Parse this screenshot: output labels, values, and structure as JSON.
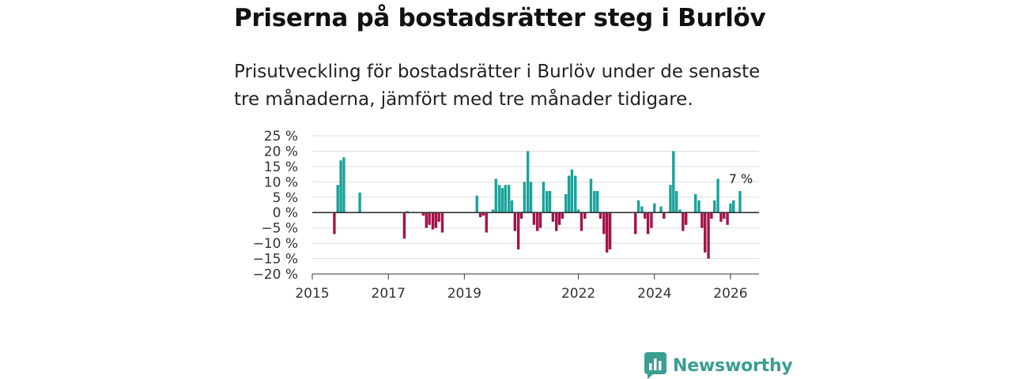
{
  "header": {
    "title": "Priserna på bostadsrätter steg i Burlöv",
    "subtitle": "Prisutveckling för bostadsrätter i Burlöv under de senaste tre månaderna, jämfört med tre månader tidigare."
  },
  "brand": {
    "name": "Newsworthy"
  },
  "colors": {
    "positive": "#1ba29a",
    "negative": "#a5124a",
    "grid": "#dddddd",
    "axis": "#333333",
    "brand": "#3a9e92"
  },
  "chart_data": {
    "type": "bar",
    "title": "Priserna på bostadsrätter steg i Burlöv",
    "subtitle": "Prisutveckling för bostadsrätter i Burlöv under de senaste tre månaderna, jämfört med tre månader tidigare.",
    "xlabel": "",
    "ylabel": "",
    "ylim": [
      -20,
      25
    ],
    "yticks": [
      25,
      20,
      15,
      10,
      5,
      0,
      -5,
      -10,
      -15,
      -20
    ],
    "ytick_labels": [
      "25 %",
      "20 %",
      "15 %",
      "10 %",
      "5 %",
      "0 %",
      "−5 %",
      "−10 %",
      "−15 %",
      "−20 %"
    ],
    "xticks": [
      {
        "label": "2015",
        "x": 2015.0
      },
      {
        "label": "2017",
        "x": 2017.0
      },
      {
        "label": "2019",
        "x": 2019.0
      },
      {
        "label": "2022",
        "x": 2022.0
      },
      {
        "label": "2024",
        "x": 2024.0
      },
      {
        "label": "2026",
        "x": 2026.0
      }
    ],
    "xlim": [
      2015.0,
      2026.75
    ],
    "grid": true,
    "unit": "%",
    "last_value_label": "7 %",
    "series": [
      {
        "name": "Prisutveckling",
        "points": [
          {
            "x": 2015.58,
            "y": -7
          },
          {
            "x": 2015.67,
            "y": 9
          },
          {
            "x": 2015.75,
            "y": 17
          },
          {
            "x": 2015.83,
            "y": 18
          },
          {
            "x": 2016.25,
            "y": 6.5
          },
          {
            "x": 2017.42,
            "y": -8.5
          },
          {
            "x": 2017.5,
            "y": 0.5
          },
          {
            "x": 2017.92,
            "y": -1
          },
          {
            "x": 2018.0,
            "y": -5
          },
          {
            "x": 2018.08,
            "y": -4
          },
          {
            "x": 2018.17,
            "y": -5.5
          },
          {
            "x": 2018.25,
            "y": -5
          },
          {
            "x": 2018.33,
            "y": -3
          },
          {
            "x": 2018.42,
            "y": -6.5
          },
          {
            "x": 2019.33,
            "y": 5.5
          },
          {
            "x": 2019.42,
            "y": -1.5
          },
          {
            "x": 2019.5,
            "y": -1
          },
          {
            "x": 2019.58,
            "y": -6.5
          },
          {
            "x": 2019.75,
            "y": 1
          },
          {
            "x": 2019.83,
            "y": 11
          },
          {
            "x": 2019.92,
            "y": 9
          },
          {
            "x": 2020.0,
            "y": 8
          },
          {
            "x": 2020.08,
            "y": 9
          },
          {
            "x": 2020.17,
            "y": 9
          },
          {
            "x": 2020.25,
            "y": 4
          },
          {
            "x": 2020.33,
            "y": -6
          },
          {
            "x": 2020.42,
            "y": -12
          },
          {
            "x": 2020.5,
            "y": -2
          },
          {
            "x": 2020.58,
            "y": 10
          },
          {
            "x": 2020.67,
            "y": 20
          },
          {
            "x": 2020.75,
            "y": 10
          },
          {
            "x": 2020.83,
            "y": -4
          },
          {
            "x": 2020.92,
            "y": -6
          },
          {
            "x": 2021.0,
            "y": -5
          },
          {
            "x": 2021.08,
            "y": 10
          },
          {
            "x": 2021.17,
            "y": 7
          },
          {
            "x": 2021.25,
            "y": 7
          },
          {
            "x": 2021.33,
            "y": -3
          },
          {
            "x": 2021.42,
            "y": -6
          },
          {
            "x": 2021.5,
            "y": -4
          },
          {
            "x": 2021.58,
            "y": -2
          },
          {
            "x": 2021.67,
            "y": 6
          },
          {
            "x": 2021.75,
            "y": 12
          },
          {
            "x": 2021.83,
            "y": 14
          },
          {
            "x": 2021.92,
            "y": 12
          },
          {
            "x": 2022.0,
            "y": 1
          },
          {
            "x": 2022.08,
            "y": -6
          },
          {
            "x": 2022.17,
            "y": -2
          },
          {
            "x": 2022.33,
            "y": 11
          },
          {
            "x": 2022.42,
            "y": 7
          },
          {
            "x": 2022.5,
            "y": 7
          },
          {
            "x": 2022.58,
            "y": -2
          },
          {
            "x": 2022.67,
            "y": -7
          },
          {
            "x": 2022.75,
            "y": -13
          },
          {
            "x": 2022.83,
            "y": -12
          },
          {
            "x": 2023.5,
            "y": -7
          },
          {
            "x": 2023.58,
            "y": 4
          },
          {
            "x": 2023.67,
            "y": 2
          },
          {
            "x": 2023.75,
            "y": -2
          },
          {
            "x": 2023.83,
            "y": -7
          },
          {
            "x": 2023.92,
            "y": -5
          },
          {
            "x": 2024.0,
            "y": 3
          },
          {
            "x": 2024.17,
            "y": 2
          },
          {
            "x": 2024.25,
            "y": -2
          },
          {
            "x": 2024.42,
            "y": 9
          },
          {
            "x": 2024.5,
            "y": 20
          },
          {
            "x": 2024.58,
            "y": 7
          },
          {
            "x": 2024.67,
            "y": 1
          },
          {
            "x": 2024.75,
            "y": -6
          },
          {
            "x": 2024.83,
            "y": -4
          },
          {
            "x": 2025.08,
            "y": 6
          },
          {
            "x": 2025.17,
            "y": 4
          },
          {
            "x": 2025.25,
            "y": -5
          },
          {
            "x": 2025.33,
            "y": -13
          },
          {
            "x": 2025.42,
            "y": -15
          },
          {
            "x": 2025.5,
            "y": -2
          },
          {
            "x": 2025.58,
            "y": 4
          },
          {
            "x": 2025.67,
            "y": 11
          },
          {
            "x": 2025.75,
            "y": -3
          },
          {
            "x": 2025.83,
            "y": -2
          },
          {
            "x": 2025.92,
            "y": -4
          },
          {
            "x": 2026.0,
            "y": 3
          },
          {
            "x": 2026.08,
            "y": 4
          },
          {
            "x": 2026.25,
            "y": 7
          }
        ]
      }
    ]
  }
}
